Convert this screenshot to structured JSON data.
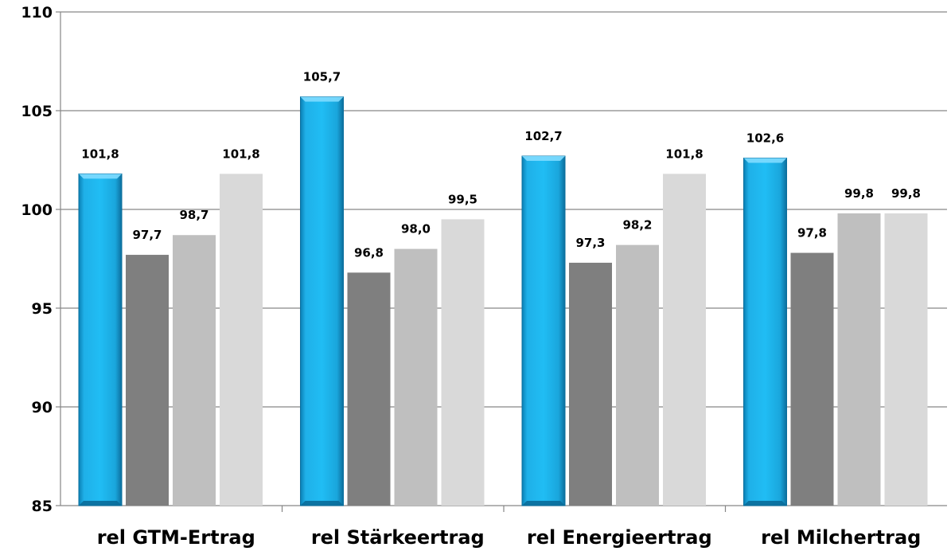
{
  "chart_data": {
    "type": "bar",
    "title": "",
    "xlabel": "",
    "ylabel": "",
    "ylim": [
      85,
      110
    ],
    "yticks": [
      85,
      90,
      95,
      100,
      105,
      110
    ],
    "grid": "horizontal",
    "legend": "none",
    "categories": [
      "rel GTM-Ertrag",
      "rel Stärkeertrag",
      "rel Energieertrag",
      "rel Milchertrag"
    ],
    "series": [
      {
        "values": [
          101.8,
          105.7,
          102.7,
          102.6
        ],
        "labels": [
          "101,8",
          "105,7",
          "102,7",
          "102,6"
        ],
        "color": "#1ab6ee"
      },
      {
        "values": [
          97.7,
          96.8,
          97.3,
          97.8
        ],
        "labels": [
          "97,7",
          "96,8",
          "97,3",
          "97,8"
        ],
        "color": "#7f7f7f"
      },
      {
        "values": [
          98.7,
          98.0,
          98.2,
          99.8
        ],
        "labels": [
          "98,7",
          "98,0",
          "98,2",
          "99,8"
        ],
        "color": "#bfbfbf"
      },
      {
        "values": [
          101.8,
          99.5,
          101.8,
          99.8
        ],
        "labels": [
          "101,8",
          "99,5",
          "101,8",
          "99,8"
        ],
        "color": "#d9d9d9"
      }
    ]
  }
}
